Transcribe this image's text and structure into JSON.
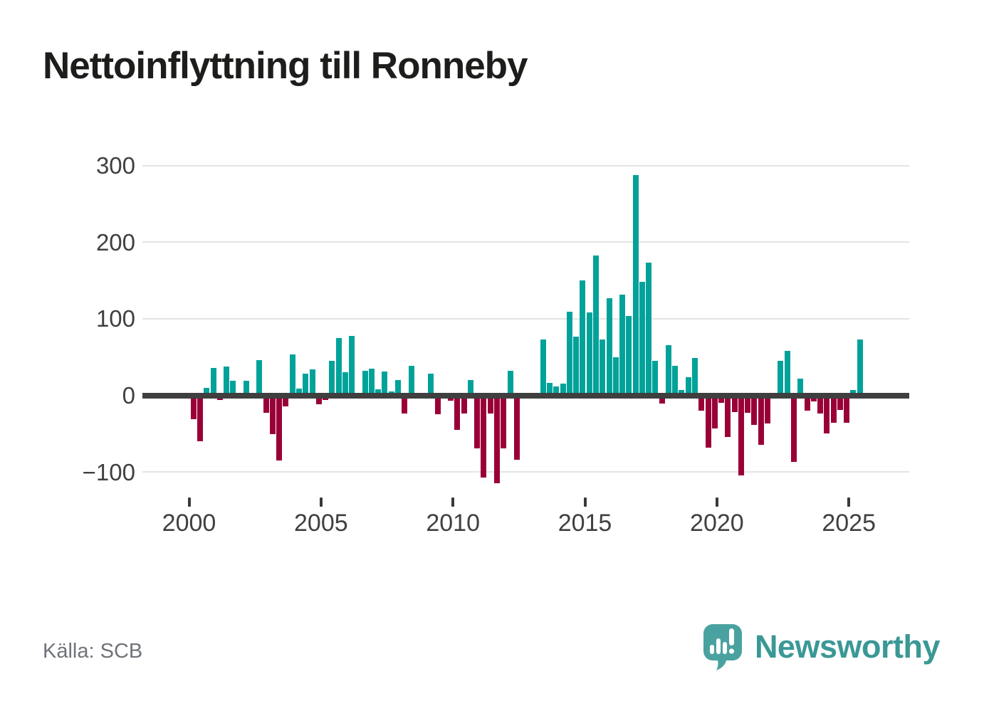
{
  "title": "Nettoinflyttning till Ronneby",
  "source": "Källa: SCB",
  "branding": {
    "name": "Newsworthy",
    "icon": "newsworthy-speech-bubble-chart-icon"
  },
  "colors": {
    "positive_bar": "#00a29a",
    "negative_bar": "#9a0038",
    "gridline": "#e4e4e4",
    "zero_line": "#3f3f3f",
    "axis_text": "#404040",
    "title_text": "#1d1d1b",
    "source_text": "#70737a",
    "brand_teal": "#3a9896"
  },
  "chart_data": {
    "type": "bar",
    "title": "Nettoinflyttning till Ronneby",
    "frequency": "quarterly",
    "start_period": "2000Q1",
    "end_period": "2025Q4",
    "legend": "none",
    "grid": "horizontal",
    "ylim": [
      -130,
      310
    ],
    "y_tick_values": [
      300,
      200,
      100,
      0,
      -100
    ],
    "y_tick_labels": [
      "300",
      "200",
      "100",
      "0",
      "−100"
    ],
    "x_tick_values": [
      2000,
      2005,
      2010,
      2015,
      2020,
      2025
    ],
    "x_tick_labels": [
      "2000",
      "2005",
      "2010",
      "2015",
      "2020",
      "2025"
    ],
    "values": [
      -31,
      -60,
      10,
      36,
      -6,
      38,
      19,
      0,
      19,
      0,
      46,
      -23,
      -51,
      -85,
      -14,
      53,
      9,
      28,
      34,
      -12,
      -6,
      45,
      75,
      30,
      78,
      0,
      32,
      35,
      8,
      31,
      5,
      20,
      -24,
      39,
      -4,
      -3,
      28,
      -25,
      0,
      -7,
      -45,
      -24,
      20,
      -69,
      -107,
      -24,
      -115,
      -69,
      32,
      -84,
      0,
      0,
      0,
      73,
      16,
      12,
      15,
      109,
      77,
      150,
      108,
      183,
      73,
      127,
      50,
      132,
      104,
      288,
      148,
      173,
      45,
      -11,
      66,
      39,
      7,
      24,
      49,
      -20,
      -68,
      -43,
      -10,
      -54,
      -22,
      -105,
      -23,
      -39,
      -65,
      -37,
      0,
      45,
      58,
      -87,
      22,
      -20,
      -8,
      -24,
      -50,
      -36,
      -19,
      -36,
      7,
      73,
      0,
      -3
    ]
  }
}
